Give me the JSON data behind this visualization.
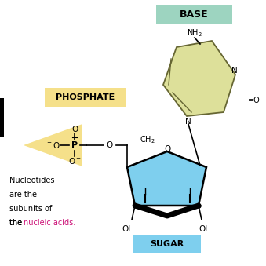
{
  "bg_color": "#ffffff",
  "base_label": "BASE",
  "base_label_bg": "#9dd4c0",
  "phosphate_label": "PHOSPHATE",
  "phosphate_label_bg": "#f5e08a",
  "sugar_label": "SUGAR",
  "sugar_label_bg": "#7ecfee",
  "base_ring_color": "#dde09a",
  "base_ring_edge": "#666633",
  "sugar_ring_color": "#7ecfee",
  "sugar_ring_edge": "#000000",
  "phosphate_bg_color": "#f5e08a",
  "nucleic_acids_color": "#cc1177",
  "text_color": "#000000",
  "figsize": [
    3.39,
    3.39
  ],
  "dpi": 100
}
